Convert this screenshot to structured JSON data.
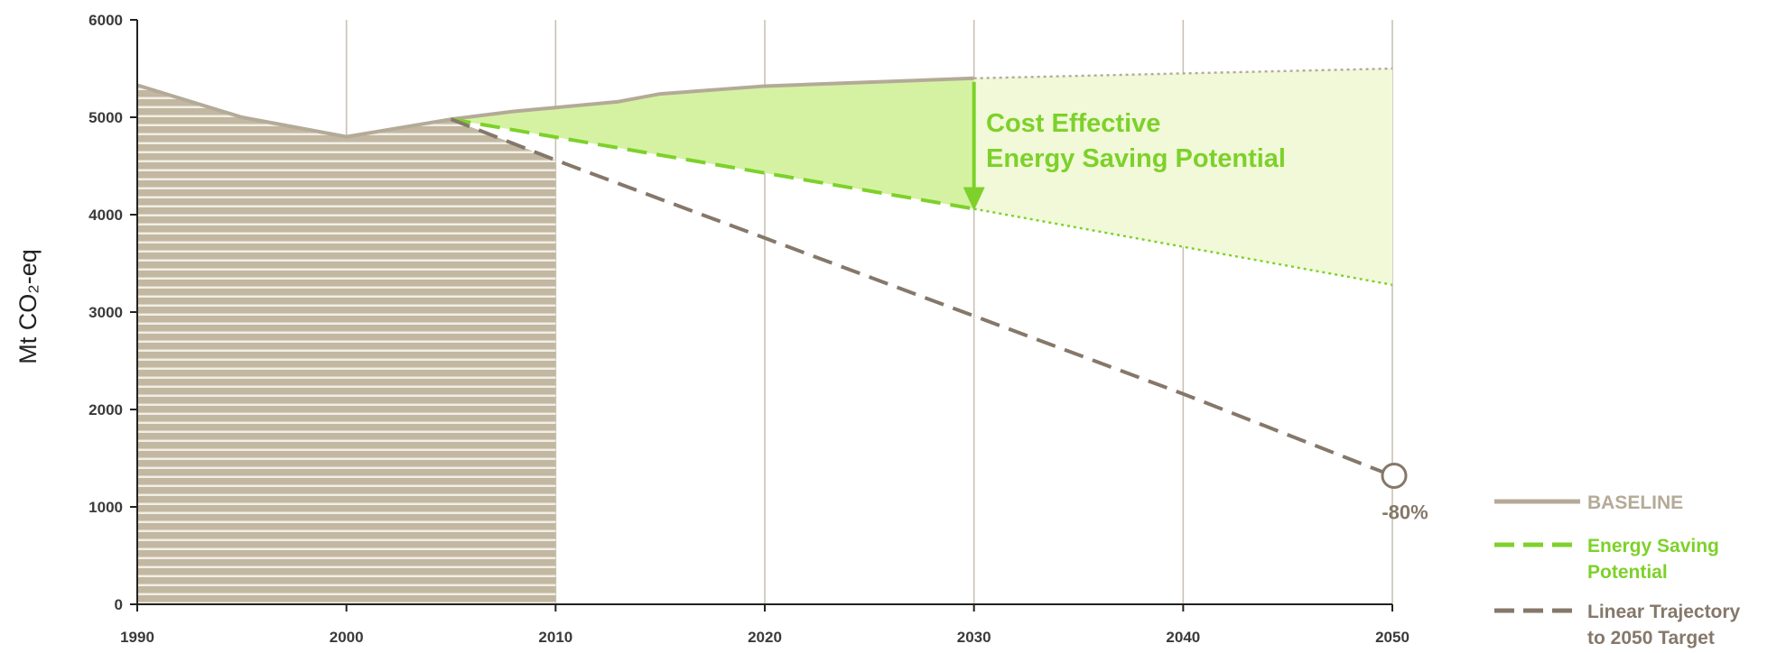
{
  "chart_data": {
    "type": "line",
    "ylabel": "Mt CO₂-eq",
    "ylim": [
      0,
      6000
    ],
    "xlim": [
      1990,
      2050
    ],
    "x_ticks": [
      "1990",
      "2000",
      "2010",
      "2020",
      "2030",
      "2040",
      "2050"
    ],
    "y_ticks": [
      "0",
      "1000",
      "2000",
      "3000",
      "4000",
      "5000",
      "6000"
    ],
    "grid": "vertical",
    "legend_placement": "bottom-right",
    "historical_area": {
      "x": [
        1990,
        1995,
        2000,
        2005,
        2010
      ],
      "y": [
        5330,
        5000,
        4800,
        4980,
        4560
      ],
      "color": "#c2b7a0"
    },
    "series": [
      {
        "name": "BASELINE",
        "style": "solid",
        "color": "#b4aa98",
        "x": [
          1990,
          1995,
          2000,
          2005,
          2008,
          2010,
          2013,
          2015,
          2020,
          2025,
          2030
        ],
        "y": [
          5330,
          5000,
          4800,
          4980,
          5060,
          5100,
          5160,
          5240,
          5320,
          5360,
          5400
        ]
      },
      {
        "name": "BASELINE (extrapolated)",
        "style": "dotted",
        "color": "#b4aa98",
        "x": [
          2030,
          2050
        ],
        "y": [
          5400,
          5500
        ]
      },
      {
        "name": "Energy Saving Potential",
        "style": "dashed",
        "color": "#7dd12a",
        "x": [
          2005,
          2030
        ],
        "y": [
          4980,
          4060
        ]
      },
      {
        "name": "Energy Saving Potential (extrapolated)",
        "style": "dotted",
        "color": "#7dd12a",
        "x": [
          2030,
          2050
        ],
        "y": [
          4060,
          3280
        ]
      },
      {
        "name": "Linear Trajectory to 2050 Target",
        "style": "dashed",
        "color": "#85786a",
        "x": [
          2005,
          2010,
          2020,
          2030,
          2040,
          2050
        ],
        "y": [
          4980,
          4560,
          3760,
          2960,
          2160,
          1320
        ]
      }
    ],
    "target_point": {
      "x": 2050,
      "y": 1320,
      "label": "-80%"
    },
    "annotations": {
      "saving_title_line1": "Cost Effective",
      "saving_title_line2": "Energy Saving Potential",
      "arrow": {
        "x": 2030,
        "from": 5400,
        "to": 4060
      }
    },
    "legend": [
      {
        "label_lines": [
          "BASELINE"
        ],
        "style": "solid",
        "color": "#b4aa98",
        "text_color": "#b4aa98"
      },
      {
        "label_lines": [
          "Energy Saving",
          "Potential"
        ],
        "style": "dashed",
        "color": "#7dd12a",
        "text_color": "#7dd12a"
      },
      {
        "label_lines": [
          "Linear Trajectory",
          "to 2050 Target"
        ],
        "style": "dashed",
        "color": "#85786a",
        "text_color": "#85786a"
      }
    ]
  }
}
